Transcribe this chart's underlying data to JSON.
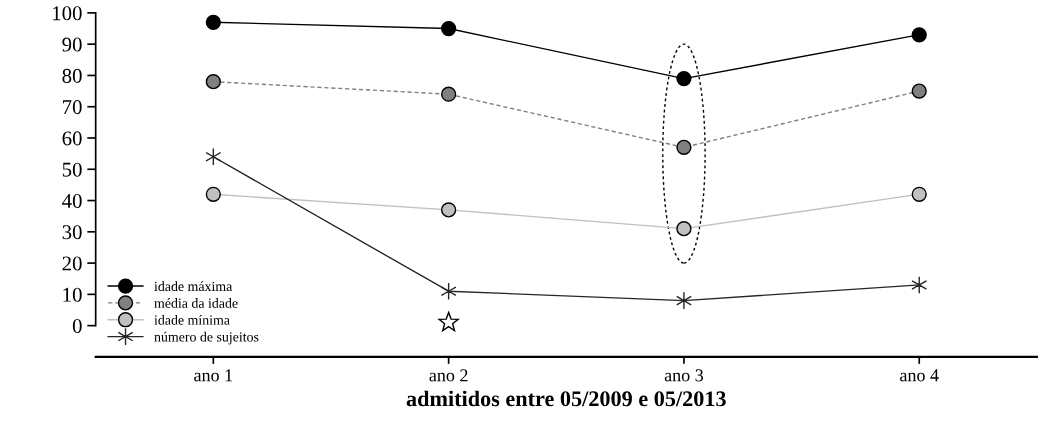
{
  "chart_data": {
    "type": "line",
    "xlabel": "admitidos entre 05/2009 e 05/2013",
    "categories": [
      "ano 1",
      "ano 2",
      "ano 3",
      "ano 4"
    ],
    "series": [
      {
        "name": "idade máxima",
        "color": "#000000",
        "values": [
          97,
          95,
          79,
          93
        ],
        "marker": "circle",
        "line_style": "solid"
      },
      {
        "name": "média da idade",
        "color": "#808080",
        "values": [
          78,
          74,
          57,
          75
        ],
        "marker": "circle",
        "line_style": "dashed"
      },
      {
        "name": "idade mínima",
        "color": "#c0c0c0",
        "values": [
          42,
          37,
          31,
          42
        ],
        "marker": "circle",
        "line_style": "solid"
      },
      {
        "name": "número de sujeitos",
        "color": "#262626",
        "values": [
          54,
          11,
          8,
          13
        ],
        "marker": "cross",
        "line_style": "solid"
      }
    ],
    "ylim": [
      -10,
      100
    ],
    "yticks": [
      0,
      10,
      20,
      30,
      40,
      50,
      60,
      70,
      80,
      90,
      100
    ],
    "grid": false,
    "legend": "bottom left"
  }
}
